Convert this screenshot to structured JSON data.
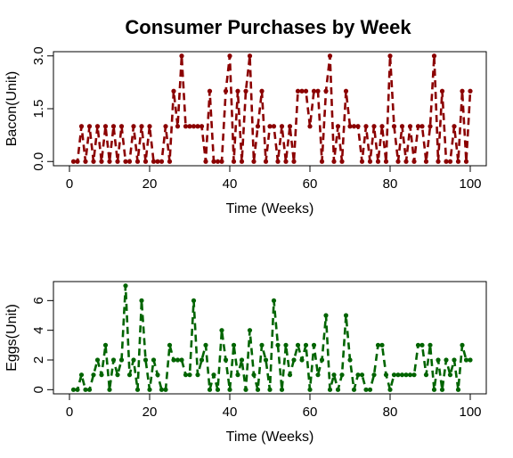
{
  "figure": {
    "title": "Consumer Purchases by Week"
  },
  "chart_data": [
    {
      "type": "line",
      "title": "",
      "xlabel": "Time (Weeks)",
      "ylabel": "Bacon(Unit)",
      "xlim": [
        0,
        100
      ],
      "ylim": [
        0,
        3
      ],
      "xticks": [
        0,
        20,
        40,
        60,
        80,
        100
      ],
      "yticks": [
        0,
        1.5,
        3
      ],
      "ytick_labels": [
        "0.0",
        "1.5",
        "3.0"
      ],
      "line_style": "dashed with point markers",
      "color": "#8b0000",
      "series": [
        {
          "x": [
            1,
            2,
            3,
            4,
            5,
            6,
            7,
            8,
            9,
            10,
            11,
            12,
            13,
            14,
            15,
            16,
            17,
            18,
            19,
            20,
            21,
            22,
            23,
            24,
            25,
            26,
            27,
            28,
            29,
            30,
            31,
            32,
            33,
            34,
            35,
            36,
            37,
            38,
            39,
            40,
            41,
            42,
            43,
            44,
            45,
            46,
            47,
            48,
            49,
            50,
            51,
            52,
            53,
            54,
            55,
            56,
            57,
            58,
            59,
            60,
            61,
            62,
            63,
            64,
            65,
            66,
            67,
            68,
            69,
            70,
            71,
            72,
            73,
            74,
            75,
            76,
            77,
            78,
            79,
            80,
            81,
            82,
            83,
            84,
            85,
            86,
            87,
            88,
            89,
            90,
            91,
            92,
            93,
            94,
            95,
            96,
            97,
            98,
            99,
            100
          ],
          "values": [
            0,
            0,
            1,
            0,
            1,
            0,
            1,
            0,
            1,
            0,
            1,
            0,
            1,
            0,
            0,
            1,
            0,
            1,
            0,
            1,
            0,
            0,
            0,
            1,
            0,
            2,
            1,
            3,
            1,
            1,
            1,
            1,
            1,
            0,
            2,
            0,
            0,
            0,
            2,
            3,
            0,
            2,
            0,
            2,
            3,
            0,
            1,
            2,
            0,
            1,
            1,
            0,
            1,
            0,
            1,
            0,
            2,
            2,
            2,
            1,
            2,
            2,
            0,
            2,
            3,
            0,
            1,
            0,
            2,
            1,
            1,
            1,
            0,
            1,
            0,
            1,
            0,
            1,
            0,
            3,
            1,
            0,
            1,
            0,
            1,
            0,
            1,
            1,
            0,
            1,
            3,
            0,
            2,
            0,
            0,
            1,
            0,
            2,
            0,
            2
          ]
        }
      ]
    },
    {
      "type": "line",
      "title": "",
      "xlabel": "Time (Weeks)",
      "ylabel": "Eggs(Unit)",
      "xlim": [
        0,
        100
      ],
      "ylim": [
        0,
        7
      ],
      "xticks": [
        0,
        20,
        40,
        60,
        80,
        100
      ],
      "yticks": [
        0,
        2,
        4,
        6
      ],
      "ytick_labels": [
        "0",
        "2",
        "4",
        "6"
      ],
      "line_style": "dashed with point markers",
      "color": "#006400",
      "series": [
        {
          "x": [
            1,
            2,
            3,
            4,
            5,
            6,
            7,
            8,
            9,
            10,
            11,
            12,
            13,
            14,
            15,
            16,
            17,
            18,
            19,
            20,
            21,
            22,
            23,
            24,
            25,
            26,
            27,
            28,
            29,
            30,
            31,
            32,
            33,
            34,
            35,
            36,
            37,
            38,
            39,
            40,
            41,
            42,
            43,
            44,
            45,
            46,
            47,
            48,
            49,
            50,
            51,
            52,
            53,
            54,
            55,
            56,
            57,
            58,
            59,
            60,
            61,
            62,
            63,
            64,
            65,
            66,
            67,
            68,
            69,
            70,
            71,
            72,
            73,
            74,
            75,
            76,
            77,
            78,
            79,
            80,
            81,
            82,
            83,
            84,
            85,
            86,
            87,
            88,
            89,
            90,
            91,
            92,
            93,
            94,
            95,
            96,
            97,
            98,
            99,
            100
          ],
          "values": [
            0,
            0,
            1,
            0,
            0,
            1,
            2,
            1,
            3,
            0,
            2,
            1,
            2,
            7,
            1,
            2,
            0,
            6,
            2,
            0,
            2,
            1,
            0,
            0,
            3,
            2,
            2,
            2,
            1,
            1,
            6,
            1,
            2,
            3,
            0,
            1,
            0,
            4,
            2,
            0,
            3,
            1,
            2,
            0,
            4,
            1,
            0,
            3,
            2,
            0,
            6,
            3,
            0,
            3,
            1,
            2,
            3,
            2,
            3,
            0,
            3,
            1,
            2,
            5,
            0,
            1,
            0,
            1,
            5,
            2,
            0,
            1,
            1,
            0,
            0,
            1,
            3,
            3,
            1,
            0,
            1,
            1,
            1,
            1,
            1,
            1,
            3,
            3,
            1,
            3,
            0,
            2,
            0,
            2,
            1,
            2,
            0,
            3,
            2,
            2
          ]
        }
      ]
    }
  ]
}
